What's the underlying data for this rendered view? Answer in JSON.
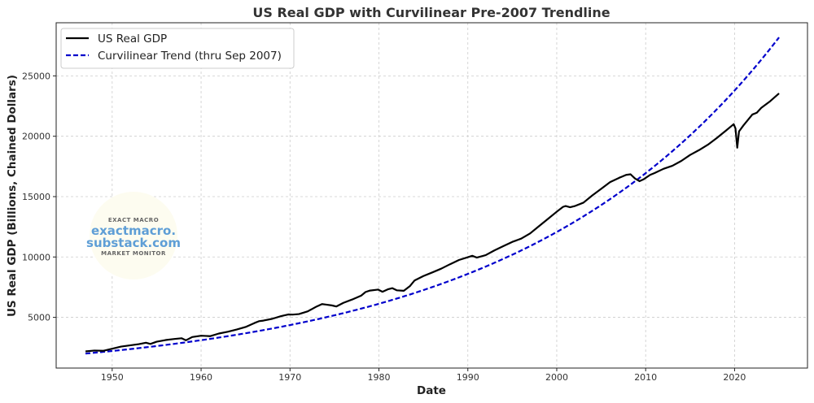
{
  "chart_data": {
    "type": "line",
    "title": "US Real GDP with Curvilinear Pre-2007 Trendline",
    "xlabel": "Date",
    "ylabel": "US Real GDP (Billions, Chained Dollars)",
    "xlim": [
      1943.7,
      2028.2
    ],
    "ylim": [
      800,
      29400
    ],
    "x_ticks": [
      1950,
      1960,
      1970,
      1980,
      1990,
      2000,
      2010,
      2020
    ],
    "y_ticks": [
      5000,
      10000,
      15000,
      20000,
      25000
    ],
    "grid": true,
    "legend_position": "top-left",
    "series": [
      {
        "name": "US Real GDP",
        "color": "#000000",
        "style": "solid",
        "points": [
          [
            1947.0,
            2180
          ],
          [
            1948.0,
            2250
          ],
          [
            1949.0,
            2230
          ],
          [
            1950.0,
            2400
          ],
          [
            1951.0,
            2580
          ],
          [
            1952.0,
            2680
          ],
          [
            1953.0,
            2780
          ],
          [
            1953.8,
            2900
          ],
          [
            1954.3,
            2800
          ],
          [
            1955.0,
            2980
          ],
          [
            1956.0,
            3120
          ],
          [
            1957.0,
            3210
          ],
          [
            1957.8,
            3270
          ],
          [
            1958.3,
            3100
          ],
          [
            1959.0,
            3370
          ],
          [
            1960.0,
            3480
          ],
          [
            1960.8,
            3450
          ],
          [
            1961.0,
            3440
          ],
          [
            1962.0,
            3660
          ],
          [
            1963.0,
            3810
          ],
          [
            1964.0,
            3990
          ],
          [
            1965.0,
            4200
          ],
          [
            1966.0,
            4530
          ],
          [
            1966.5,
            4680
          ],
          [
            1967.0,
            4730
          ],
          [
            1968.0,
            4880
          ],
          [
            1969.0,
            5100
          ],
          [
            1969.8,
            5240
          ],
          [
            1970.3,
            5230
          ],
          [
            1971.0,
            5270
          ],
          [
            1972.0,
            5500
          ],
          [
            1973.0,
            5900
          ],
          [
            1973.6,
            6100
          ],
          [
            1974.0,
            6060
          ],
          [
            1974.7,
            5990
          ],
          [
            1975.2,
            5900
          ],
          [
            1976.0,
            6200
          ],
          [
            1977.0,
            6480
          ],
          [
            1978.0,
            6800
          ],
          [
            1978.5,
            7100
          ],
          [
            1979.0,
            7220
          ],
          [
            1979.9,
            7300
          ],
          [
            1980.4,
            7120
          ],
          [
            1981.0,
            7320
          ],
          [
            1981.5,
            7420
          ],
          [
            1982.0,
            7240
          ],
          [
            1982.8,
            7200
          ],
          [
            1983.5,
            7600
          ],
          [
            1984.0,
            8050
          ],
          [
            1985.0,
            8420
          ],
          [
            1986.0,
            8720
          ],
          [
            1987.0,
            9030
          ],
          [
            1988.0,
            9400
          ],
          [
            1989.0,
            9750
          ],
          [
            1990.0,
            9980
          ],
          [
            1990.5,
            10100
          ],
          [
            1991.0,
            9950
          ],
          [
            1992.0,
            10150
          ],
          [
            1993.0,
            10550
          ],
          [
            1994.0,
            10900
          ],
          [
            1995.0,
            11250
          ],
          [
            1996.0,
            11520
          ],
          [
            1997.0,
            11950
          ],
          [
            1998.0,
            12550
          ],
          [
            1999.0,
            13150
          ],
          [
            2000.0,
            13750
          ],
          [
            2000.7,
            14150
          ],
          [
            2001.0,
            14220
          ],
          [
            2001.5,
            14120
          ],
          [
            2002.0,
            14210
          ],
          [
            2003.0,
            14500
          ],
          [
            2004.0,
            15100
          ],
          [
            2005.0,
            15650
          ],
          [
            2006.0,
            16200
          ],
          [
            2007.0,
            16550
          ],
          [
            2007.8,
            16800
          ],
          [
            2008.3,
            16850
          ],
          [
            2008.8,
            16500
          ],
          [
            2009.3,
            16280
          ],
          [
            2009.8,
            16450
          ],
          [
            2010.5,
            16800
          ],
          [
            2011.0,
            16950
          ],
          [
            2012.0,
            17300
          ],
          [
            2013.0,
            17550
          ],
          [
            2014.0,
            17950
          ],
          [
            2015.0,
            18450
          ],
          [
            2016.0,
            18850
          ],
          [
            2017.0,
            19300
          ],
          [
            2018.0,
            19850
          ],
          [
            2019.0,
            20450
          ],
          [
            2019.9,
            21000
          ],
          [
            2020.1,
            20650
          ],
          [
            2020.3,
            19050
          ],
          [
            2020.5,
            20400
          ],
          [
            2021.0,
            20900
          ],
          [
            2022.0,
            21800
          ],
          [
            2022.5,
            21950
          ],
          [
            2023.0,
            22350
          ],
          [
            2024.0,
            22900
          ],
          [
            2025.0,
            23550
          ]
        ]
      },
      {
        "name": "Curvilinear Trend (thru Sep 2007)",
        "color": "#0000cc",
        "style": "dashed",
        "curve": {
          "base": 2000,
          "start_year": 1947,
          "annual_growth": 0.0345
        },
        "x_range": [
          1947,
          2025
        ]
      }
    ]
  },
  "watermark": {
    "line1": "EXACT MACRO",
    "line2": "exactmacro.",
    "line3": "substack.com",
    "line4": "MARKET MONITOR"
  }
}
